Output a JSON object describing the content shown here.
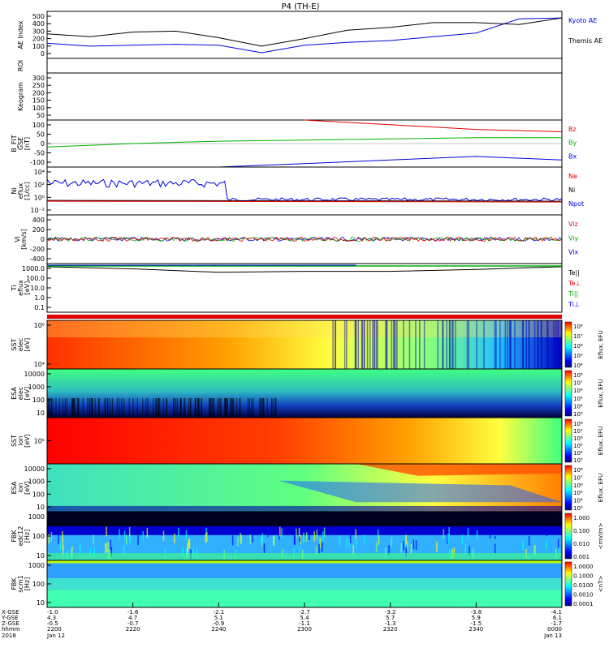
{
  "title": "P4 (TH-E)",
  "colors": {
    "red": "#e00000",
    "green": "#00b000",
    "blue": "#0000e0",
    "black": "#000000",
    "cb": [
      "#000080",
      "#0000ff",
      "#0080ff",
      "#00ffff",
      "#80ff80",
      "#ffff00",
      "#ff8000",
      "#ff0000"
    ]
  },
  "panels": [
    {
      "id": "ae",
      "ylabel": [
        "AE Index"
      ],
      "ticks": [
        "500",
        "400",
        "300",
        "200",
        "100",
        "0"
      ],
      "legend": [
        {
          "t": "Kyoto AE",
          "c": "#0000e0"
        },
        {
          "t": "Themis AE",
          "c": "#000000"
        }
      ]
    },
    {
      "id": "roi",
      "ylabel": [
        "ROI"
      ],
      "ticks": [],
      "legend": []
    },
    {
      "id": "keo",
      "ylabel": [
        "Keogram"
      ],
      "ticks": [
        "300",
        "250",
        "200",
        "150",
        "100",
        "50"
      ],
      "legend": []
    },
    {
      "id": "bfit",
      "ylabel": [
        "B_FIT",
        "GSE",
        "[nT]"
      ],
      "ticks": [
        "100",
        "50",
        "0",
        "-50",
        "-100"
      ],
      "legend": [
        {
          "t": "Bz",
          "c": "#e00000"
        },
        {
          "t": "By",
          "c": "#00b000"
        },
        {
          "t": "Bx",
          "c": "#0000e0"
        }
      ]
    },
    {
      "id": "ni",
      "ylabel": [
        "Ni",
        "eflux",
        "[1/cc]"
      ],
      "ticks": [
        "10⁴",
        "10²",
        "10⁰",
        "10⁻²"
      ],
      "legend": [
        {
          "t": "Ne",
          "c": "#e00000"
        },
        {
          "t": "Ni",
          "c": "#000000"
        },
        {
          "t": "Npot",
          "c": "#0000e0"
        }
      ]
    },
    {
      "id": "vi",
      "ylabel": [
        "Vi",
        "[km/s]"
      ],
      "ticks": [
        "400",
        "200",
        "0",
        "-200",
        "-400"
      ],
      "legend": [
        {
          "t": "Viz",
          "c": "#e00000"
        },
        {
          "t": "Viy",
          "c": "#00b000"
        },
        {
          "t": "Vix",
          "c": "#0000e0"
        }
      ]
    },
    {
      "id": "ti",
      "ylabel": [
        "Ti",
        "eflux",
        "[eV]"
      ],
      "ticks": [
        "1000.0",
        "100.0",
        "10.0",
        "1.0",
        "0.1"
      ],
      "legend": [
        {
          "t": "Te||",
          "c": "#000000"
        },
        {
          "t": "Te⊥",
          "c": "#e00000"
        },
        {
          "t": "Ti||",
          "c": "#00b000"
        },
        {
          "t": "Ti⊥",
          "c": "#0000e0"
        }
      ]
    },
    {
      "id": "sst_e",
      "ylabel": [
        "SST",
        "elec",
        "[eV]"
      ],
      "ticks": [
        "10⁶",
        "10⁴"
      ],
      "cbar": [
        "10⁸",
        "10⁷",
        "10⁶",
        "10⁵",
        "10⁴"
      ],
      "cblabel": "Eflux, EFU",
      "legend": []
    },
    {
      "id": "esa_e",
      "ylabel": [
        "ESA",
        "elec",
        "[eV]"
      ],
      "ticks": [
        "10000",
        "1000",
        "100",
        "10"
      ],
      "cbar": [
        "10⁸",
        "10⁷",
        "10⁶",
        "10⁵",
        "10⁴",
        "10³"
      ],
      "cblabel": "Eflux, EFU",
      "legend": []
    },
    {
      "id": "sst_i",
      "ylabel": [
        "SST",
        "ion",
        "[eV]"
      ],
      "ticks": [
        "10⁵"
      ],
      "cbar": [
        "10⁸",
        "10⁷",
        "10⁶",
        "10⁵",
        "10⁴",
        "10³"
      ],
      "cblabel": "Eflux, EFU",
      "legend": []
    },
    {
      "id": "esa_i",
      "ylabel": [
        "ESA",
        "ion",
        "[eV]"
      ],
      "ticks": [
        "10000",
        "1000",
        "100",
        "10"
      ],
      "cbar": [
        "10⁸",
        "10⁷",
        "10⁶",
        "10⁵",
        "10⁴",
        "10³"
      ],
      "cblabel": "Eflux, EFU",
      "legend": []
    },
    {
      "id": "fbk_e",
      "ylabel": [
        "FBK",
        "edc12",
        "[Hz]"
      ],
      "ticks": [
        "1000",
        "100",
        "10"
      ],
      "cbar": [
        "1.000",
        "0.100",
        "0.010",
        "0.001"
      ],
      "cblabel": "<mV/m>",
      "legend": []
    },
    {
      "id": "fbk_s",
      "ylabel": [
        "FBK",
        "scm1",
        "[Hz]"
      ],
      "ticks": [
        "1000",
        "100",
        "10"
      ],
      "cbar": [
        "1.0000",
        "0.1000",
        "0.0100",
        "0.0010",
        "0.0001"
      ],
      "cblabel": "<nT>",
      "legend": []
    }
  ],
  "axis": {
    "row_labels": [
      "X-GSE",
      "Y-GSE",
      "Z-GSE",
      "hhmm",
      "2018"
    ],
    "columns": [
      {
        "v": [
          "-1.0",
          "4.3",
          "-0.5",
          "2200",
          "Jan 12"
        ]
      },
      {
        "v": [
          "-1.6",
          "4.7",
          "-0.7",
          "2220",
          ""
        ]
      },
      {
        "v": [
          "-2.1",
          "5.1",
          "-0.9",
          "2240",
          ""
        ]
      },
      {
        "v": [
          "-2.7",
          "5.4",
          "-1.1",
          "2300",
          ""
        ]
      },
      {
        "v": [
          "-3.2",
          "5.7",
          "-1.3",
          "2320",
          ""
        ]
      },
      {
        "v": [
          "-3.8",
          "5.9",
          "-1.5",
          "2340",
          ""
        ]
      },
      {
        "v": [
          "-4.1",
          "6.1",
          "-1.7",
          "0000",
          "Jan 13"
        ]
      }
    ]
  },
  "chart_data": [
    {
      "type": "line",
      "title": "P4 (TH-E)",
      "ylabel": "AE Index",
      "ylim": [
        0,
        500
      ],
      "x": [
        "2200",
        "2210",
        "2220",
        "2230",
        "2240",
        "2250",
        "2300",
        "2310",
        "2320",
        "2330",
        "2340",
        "2350",
        "0000"
      ],
      "series": [
        {
          "name": "Kyoto AE",
          "values": [
            160,
            130,
            140,
            150,
            140,
            60,
            140,
            170,
            190,
            230,
            270,
            420,
            430
          ]
        },
        {
          "name": "Themis AE",
          "values": [
            260,
            230,
            280,
            290,
            220,
            130,
            210,
            300,
            330,
            380,
            380,
            360,
            430
          ]
        }
      ]
    },
    {
      "type": "line",
      "ylabel": "B_FIT GSE [nT]",
      "ylim": [
        -100,
        100
      ],
      "x": [
        "2200",
        "2220",
        "2240",
        "2300",
        "2320",
        "2340",
        "0000"
      ],
      "series": [
        {
          "name": "Bz",
          "values": [
            null,
            null,
            null,
            100,
            80,
            60,
            50
          ]
        },
        {
          "name": "By",
          "values": [
            -15,
            0,
            10,
            15,
            20,
            25,
            25
          ]
        },
        {
          "name": "Bx",
          "values": [
            null,
            null,
            -100,
            -85,
            -70,
            -55,
            -70
          ]
        }
      ]
    },
    {
      "type": "line",
      "ylabel": "Ti eflux [eV]",
      "ylim": [
        0.1,
        1000
      ],
      "yscale": "log",
      "x": [
        "2200",
        "2220",
        "2240",
        "2300",
        "2320",
        "2340",
        "0000"
      ],
      "series": [
        {
          "name": "Te||",
          "values": [
            1500,
            900,
            400,
            500,
            500,
            800,
            1500
          ]
        }
      ]
    },
    {
      "type": "heatmap",
      "ylabel": "SST elec [eV]"
    },
    {
      "type": "heatmap",
      "ylabel": "ESA elec [eV]"
    },
    {
      "type": "heatmap",
      "ylabel": "SST ion [eV]"
    },
    {
      "type": "heatmap",
      "ylabel": "ESA ion [eV]"
    },
    {
      "type": "heatmap",
      "ylabel": "FBK edc12 [Hz]"
    },
    {
      "type": "heatmap",
      "ylabel": "FBK scm1 [Hz]"
    }
  ]
}
